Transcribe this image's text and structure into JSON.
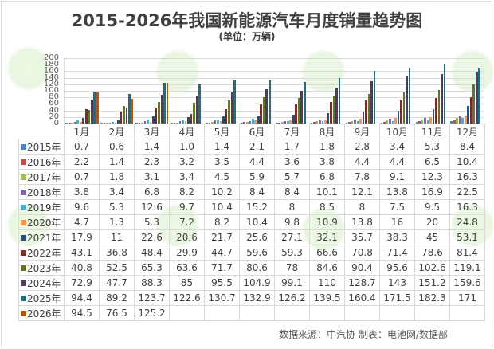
{
  "header": {
    "title": "2015-2026年我国新能源汽车月度销量趋势图",
    "subtitle": "(单位：万辆)"
  },
  "footer": {
    "source": "数据来源：中汽协  制表：电池网/数据部"
  },
  "chart_data": {
    "type": "bar",
    "title": "2015-2026年我国新能源汽车月度销量趋势图",
    "subtitle": "(单位：万辆)",
    "xlabel": "",
    "ylabel": "万辆",
    "ylim": [
      0,
      200
    ],
    "yticks": [
      0,
      20,
      40,
      60,
      80,
      100,
      120,
      140,
      160,
      180,
      200
    ],
    "grid": true,
    "legend_position": "data-table",
    "categories": [
      "1月",
      "2月",
      "3月",
      "4月",
      "5月",
      "6月",
      "7月",
      "8月",
      "9月",
      "10月",
      "11月",
      "12月"
    ],
    "series": [
      {
        "name": "2015年",
        "color": "#4f81bd",
        "values": [
          0.7,
          0.6,
          1.4,
          1.0,
          1.4,
          2.1,
          1.7,
          1.8,
          2.8,
          3.4,
          5.3,
          8.4
        ]
      },
      {
        "name": "2016年",
        "color": "#c0504d",
        "values": [
          2.2,
          1.4,
          2.3,
          3.2,
          3.5,
          4.4,
          3.6,
          3.8,
          4.4,
          4.4,
          6.5,
          10.4
        ]
      },
      {
        "name": "2017年",
        "color": "#9bbb59",
        "values": [
          0.7,
          1.8,
          3.1,
          3.4,
          4.5,
          5.9,
          5.7,
          6.8,
          7.8,
          9.1,
          12.3,
          16.3
        ]
      },
      {
        "name": "2018年",
        "color": "#8064a2",
        "values": [
          3.8,
          3.4,
          6.8,
          8.2,
          10.2,
          8.4,
          8.4,
          10.1,
          12.1,
          13.8,
          16.9,
          22.5
        ]
      },
      {
        "name": "2019年",
        "color": "#4bacc6",
        "values": [
          9.6,
          5.3,
          12.6,
          9.7,
          10.4,
          15.2,
          8,
          8.5,
          8,
          7.5,
          9.5,
          16.3
        ]
      },
      {
        "name": "2020年",
        "color": "#f79646",
        "values": [
          4.7,
          1.3,
          5.3,
          7.2,
          8.2,
          10.4,
          9.8,
          10.9,
          13.8,
          16,
          20,
          24.8
        ]
      },
      {
        "name": "2021年",
        "color": "#2c4d75",
        "values": [
          17.9,
          11,
          22.6,
          20.6,
          21.7,
          25.6,
          27.1,
          32.1,
          35.7,
          38.3,
          45,
          53.1
        ]
      },
      {
        "name": "2022年",
        "color": "#772c2a",
        "values": [
          43.1,
          36.8,
          48.4,
          29.9,
          44.7,
          59.6,
          59.3,
          66.6,
          70.8,
          71.4,
          78.6,
          81.4
        ]
      },
      {
        "name": "2023年",
        "color": "#5f7530",
        "values": [
          40.8,
          52.5,
          65.3,
          63.6,
          71.7,
          80.6,
          78,
          84.6,
          90.4,
          95.6,
          102.6,
          119.1
        ]
      },
      {
        "name": "2024年",
        "color": "#4d3b62",
        "values": [
          72.9,
          47.7,
          88.3,
          85,
          95.5,
          104.9,
          99.1,
          110,
          128.7,
          143,
          151.2,
          159.6
        ]
      },
      {
        "name": "2025年",
        "color": "#276a7c",
        "values": [
          94.4,
          89.2,
          123.7,
          122.6,
          130.7,
          132.9,
          126.2,
          139.5,
          160.4,
          171.5,
          182.3,
          171
        ]
      },
      {
        "name": "2026年",
        "color": "#b65708",
        "values": [
          94.5,
          76.5,
          125.2,
          null,
          null,
          null,
          null,
          null,
          null,
          null,
          null,
          null
        ]
      }
    ]
  },
  "table": {
    "rows": [
      {
        "label": "2015年",
        "cells": [
          "0.7",
          "0.6",
          "1.4",
          "1.0",
          "1.4",
          "2.1",
          "1.7",
          "1.8",
          "2.8",
          "3.4",
          "5.3",
          "8.4"
        ]
      },
      {
        "label": "2016年",
        "cells": [
          "2.2",
          "1.4",
          "2.3",
          "3.2",
          "3.5",
          "4.4",
          "3.6",
          "3.8",
          "4.4",
          "4.4",
          "6.5",
          "10.4"
        ]
      },
      {
        "label": "2017年",
        "cells": [
          "0.7",
          "1.8",
          "3.1",
          "3.4",
          "4.5",
          "5.9",
          "5.7",
          "6.8",
          "7.8",
          "9.1",
          "12.3",
          "16.3"
        ]
      },
      {
        "label": "2018年",
        "cells": [
          "3.8",
          "3.4",
          "6.8",
          "8.2",
          "10.2",
          "8.4",
          "8.4",
          "10.1",
          "12.1",
          "13.8",
          "16.9",
          "22.5"
        ]
      },
      {
        "label": "2019年",
        "cells": [
          "9.6",
          "5.3",
          "12.6",
          "9.7",
          "10.4",
          "15.2",
          "8",
          "8.5",
          "8",
          "7.5",
          "9.5",
          "16.3"
        ]
      },
      {
        "label": "2020年",
        "cells": [
          "4.7",
          "1.3",
          "5.3",
          "7.2",
          "8.2",
          "10.4",
          "9.8",
          "10.9",
          "13.8",
          "16",
          "20",
          "24.8"
        ]
      },
      {
        "label": "2021年",
        "cells": [
          "17.9",
          "11",
          "22.6",
          "20.6",
          "21.7",
          "25.6",
          "27.1",
          "32.1",
          "35.7",
          "38.3",
          "45",
          "53.1"
        ]
      },
      {
        "label": "2022年",
        "cells": [
          "43.1",
          "36.8",
          "48.4",
          "29.9",
          "44.7",
          "59.6",
          "59.3",
          "66.6",
          "70.8",
          "71.4",
          "78.6",
          "81.4"
        ]
      },
      {
        "label": "2023年",
        "cells": [
          "40.8",
          "52.5",
          "65.3",
          "63.6",
          "71.7",
          "80.6",
          "78",
          "84.6",
          "90.4",
          "95.6",
          "102.6",
          "119.1"
        ]
      },
      {
        "label": "2024年",
        "cells": [
          "72.9",
          "47.7",
          "88.3",
          "85",
          "95.5",
          "104.9",
          "99.1",
          "110",
          "128.7",
          "143",
          "151.2",
          "159.6"
        ]
      },
      {
        "label": "2025年",
        "cells": [
          "94.4",
          "89.2",
          "123.7",
          "122.6",
          "130.7",
          "132.9",
          "126.2",
          "139.5",
          "160.4",
          "171.5",
          "182.3",
          "171"
        ]
      },
      {
        "label": "2026年",
        "cells": [
          "94.5",
          "76.5",
          "125.2",
          "",
          "",
          "",
          "",
          "",
          "",
          "",
          "",
          ""
        ]
      }
    ]
  }
}
